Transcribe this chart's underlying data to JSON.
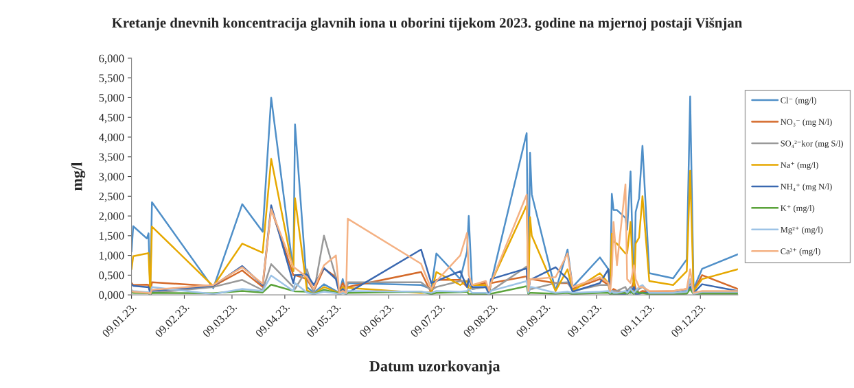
{
  "chart_data": {
    "type": "line",
    "title": "Kretanje dnevnih koncentracija glavnih iona u oborini tijekom 2023. godine na mjernoj postaji Višnjan",
    "xlabel": "Datum uzorkovanja",
    "ylabel": "mg/l",
    "x": [
      "2023-01-09",
      "2023-01-10",
      "2023-01-18",
      "2023-01-19",
      "2023-01-20",
      "2023-01-21",
      "2023-02-26",
      "2023-03-15",
      "2023-03-27",
      "2023-04-01",
      "2023-04-14",
      "2023-04-15",
      "2023-04-22",
      "2023-04-26",
      "2023-05-02",
      "2023-05-09",
      "2023-05-11",
      "2023-05-13",
      "2023-05-15",
      "2023-05-16",
      "2023-06-28",
      "2023-07-04",
      "2023-07-07",
      "2023-07-21",
      "2023-07-25",
      "2023-07-26",
      "2023-07-28",
      "2023-08-05",
      "2023-08-07",
      "2023-08-08",
      "2023-08-29",
      "2023-08-30",
      "2023-08-31",
      "2023-09-01",
      "2023-09-15",
      "2023-09-22",
      "2023-09-25",
      "2023-10-11",
      "2023-10-16",
      "2023-10-17",
      "2023-10-18",
      "2023-10-19",
      "2023-10-21",
      "2023-10-26",
      "2023-10-27",
      "2023-10-29",
      "2023-10-31",
      "2023-11-01",
      "2023-11-03",
      "2023-11-05",
      "2023-11-09",
      "2023-11-23",
      "2023-12-01",
      "2023-12-03",
      "2023-12-05",
      "2023-12-10",
      "2023-12-31"
    ],
    "series": [
      {
        "name": "Cl⁻ (mg/l)",
        "color": "#4f8fc8",
        "values": [
          1.1,
          1.74,
          1.43,
          1.56,
          0.1,
          2.35,
          0.17,
          2.3,
          1.6,
          5.0,
          0.6,
          4.32,
          0.2,
          0.05,
          0.27,
          0.1,
          0.05,
          0.4,
          0.02,
          0.3,
          0.25,
          0.15,
          1.05,
          0.4,
          1.1,
          2.0,
          0.15,
          0.2,
          0.0,
          0.3,
          4.1,
          0.05,
          3.6,
          2.55,
          0.1,
          1.15,
          0.2,
          0.95,
          0.65,
          0.1,
          2.56,
          2.15,
          2.15,
          1.95,
          1.65,
          3.13,
          0.05,
          2.1,
          2.45,
          3.78,
          0.55,
          0.42,
          0.9,
          5.03,
          0.15,
          0.66,
          1.03
        ]
      },
      {
        "name": "NO₃⁻ (mg N/l)",
        "color": "#d46a2a",
        "values": [
          0.3,
          0.25,
          0.26,
          0.25,
          0.05,
          0.32,
          0.22,
          0.62,
          0.2,
          2.18,
          0.5,
          0.5,
          0.4,
          0.1,
          0.67,
          0.45,
          0.1,
          0.3,
          0.15,
          0.2,
          0.58,
          0.05,
          0.38,
          0.38,
          0.2,
          0.4,
          0.25,
          0.3,
          0.1,
          0.3,
          0.47,
          0.1,
          0.4,
          0.4,
          0.3,
          0.3,
          0.15,
          0.4,
          0.25,
          0.1,
          0.1,
          0.15,
          0.1,
          0.05,
          0.1,
          0.1,
          0.35,
          0.15,
          0.05,
          0.1,
          0.08,
          0.1,
          0.15,
          0.3,
          0.1,
          0.5,
          0.15
        ]
      },
      {
        "name": "SO₄²⁻kor (mg S/l)",
        "color": "#999999",
        "values": [
          0.1,
          0.08,
          0.06,
          0.05,
          0.0,
          0.05,
          0.2,
          0.38,
          0.12,
          0.78,
          0.2,
          0.15,
          0.65,
          0.05,
          1.5,
          0.45,
          0.05,
          0.2,
          0.1,
          0.32,
          0.32,
          0.12,
          0.2,
          0.35,
          0.35,
          0.25,
          0.15,
          0.2,
          0.05,
          0.1,
          0.72,
          0.05,
          0.15,
          0.15,
          0.3,
          0.32,
          0.1,
          0.25,
          0.25,
          0.05,
          0.1,
          0.1,
          0.1,
          0.2,
          0.1,
          0.2,
          0.1,
          0.05,
          0.15,
          0.2,
          0.05,
          0.05,
          0.05,
          0.2,
          0.05,
          0.05,
          0.05
        ]
      },
      {
        "name": "Na⁺ (mg/l)",
        "color": "#e6a800",
        "values": [
          0.65,
          0.98,
          1.05,
          1.06,
          0.05,
          1.73,
          0.22,
          1.3,
          1.07,
          3.45,
          0.6,
          2.45,
          0.12,
          0.02,
          0.2,
          0.08,
          0.05,
          0.2,
          0.15,
          0.18,
          0.05,
          0.07,
          0.58,
          0.25,
          0.35,
          0.1,
          0.25,
          0.25,
          0.05,
          0.3,
          2.27,
          0.05,
          1.97,
          1.5,
          0.1,
          0.65,
          0.1,
          0.55,
          0.3,
          0.1,
          1.55,
          1.35,
          1.3,
          1.05,
          1.05,
          1.85,
          0.05,
          1.3,
          1.45,
          2.5,
          0.35,
          0.25,
          0.6,
          3.15,
          0.1,
          0.4,
          0.65
        ]
      },
      {
        "name": "NH₄⁺ (mg N/l)",
        "color": "#3a68b0",
        "values": [
          0.27,
          0.23,
          0.2,
          0.2,
          0.05,
          0.1,
          0.23,
          0.73,
          0.25,
          2.27,
          0.3,
          0.5,
          0.52,
          0.25,
          0.68,
          0.4,
          0.05,
          0.15,
          0.02,
          0.05,
          1.15,
          0.3,
          0.35,
          0.6,
          0.2,
          0.4,
          0.2,
          0.2,
          0.05,
          0.4,
          0.67,
          0.05,
          0.4,
          0.4,
          0.7,
          0.4,
          0.08,
          0.3,
          0.65,
          0.05,
          0.05,
          0.02,
          0.02,
          0.02,
          0.1,
          0.05,
          0.2,
          0.02,
          0.03,
          0.05,
          0.05,
          0.05,
          0.1,
          0.2,
          0.05,
          0.27,
          0.1
        ]
      },
      {
        "name": "K⁺ (mg/l)",
        "color": "#5ba33b",
        "values": [
          0.07,
          0.05,
          0.04,
          0.04,
          0.01,
          0.05,
          0.04,
          0.1,
          0.06,
          0.26,
          0.1,
          0.09,
          0.08,
          0.02,
          0.13,
          0.06,
          0.02,
          0.05,
          0.03,
          0.05,
          0.08,
          0.02,
          0.05,
          0.07,
          0.08,
          0.02,
          0.02,
          0.03,
          0.01,
          0.03,
          0.22,
          0.02,
          0.05,
          0.05,
          0.03,
          0.05,
          0.02,
          0.05,
          0.05,
          0.02,
          0.03,
          0.03,
          0.03,
          0.05,
          0.02,
          0.08,
          0.02,
          0.1,
          0.05,
          0.05,
          0.01,
          0.01,
          0.03,
          0.15,
          0.02,
          0.03,
          0.03
        ]
      },
      {
        "name": "Mg²⁺ (mg/l)",
        "color": "#9dc3e6",
        "values": [
          0.12,
          0.1,
          0.07,
          0.07,
          0.02,
          0.2,
          0.02,
          0.15,
          0.1,
          0.49,
          0.1,
          0.3,
          0.06,
          0.02,
          0.08,
          0.04,
          0.02,
          0.05,
          0.03,
          0.1,
          0.08,
          0.05,
          0.1,
          0.08,
          0.1,
          0.15,
          0.05,
          0.05,
          0.02,
          0.1,
          0.35,
          0.05,
          0.2,
          0.2,
          0.05,
          0.08,
          0.05,
          0.08,
          0.1,
          0.05,
          0.1,
          0.05,
          0.05,
          0.1,
          0.05,
          0.15,
          0.05,
          0.1,
          0.2,
          0.25,
          0.05,
          0.05,
          0.08,
          0.4,
          0.02,
          0.08,
          0.08
        ]
      },
      {
        "name": "Ca²⁺ (mg/l)",
        "color": "#f4b183",
        "values": [
          0.1,
          0.08,
          0.05,
          0.05,
          0.03,
          0.13,
          0.25,
          0.7,
          0.28,
          2.17,
          0.7,
          0.68,
          0.45,
          0.15,
          0.75,
          1.0,
          0.05,
          0.1,
          0.05,
          1.93,
          0.79,
          0.15,
          0.35,
          1.0,
          1.57,
          0.5,
          0.25,
          0.35,
          0.1,
          0.3,
          2.54,
          0.1,
          0.4,
          0.4,
          0.45,
          1.05,
          0.2,
          0.45,
          0.3,
          0.1,
          0.5,
          1.85,
          0.75,
          2.8,
          0.4,
          0.3,
          0.75,
          0.4,
          0.2,
          0.2,
          0.1,
          0.1,
          0.15,
          0.65,
          0.05,
          0.1,
          0.1
        ]
      }
    ],
    "xlim": [
      "2023-01-09",
      "2023-12-31"
    ],
    "xticks": [
      {
        "value": "2023-01-09",
        "label": "09.01.23."
      },
      {
        "value": "2023-02-09",
        "label": "09.02.23."
      },
      {
        "value": "2023-03-09",
        "label": "09.03.23."
      },
      {
        "value": "2023-04-09",
        "label": "09.04.23."
      },
      {
        "value": "2023-05-09",
        "label": "09.05.23."
      },
      {
        "value": "2023-06-09",
        "label": "09.06.23."
      },
      {
        "value": "2023-07-09",
        "label": "09.07.23."
      },
      {
        "value": "2023-08-09",
        "label": "09.08.23."
      },
      {
        "value": "2023-09-09",
        "label": "09.09.23."
      },
      {
        "value": "2023-10-09",
        "label": "09.10.23."
      },
      {
        "value": "2023-11-09",
        "label": "09.11.23."
      },
      {
        "value": "2023-12-09",
        "label": "09.12.23."
      }
    ],
    "ylim": [
      0,
      6
    ],
    "yticks": [
      {
        "value": 0,
        "label": "0,000"
      },
      {
        "value": 0.5,
        "label": "0,500"
      },
      {
        "value": 1,
        "label": "1,000"
      },
      {
        "value": 1.5,
        "label": "1,500"
      },
      {
        "value": 2,
        "label": "2,000"
      },
      {
        "value": 2.5,
        "label": "2,500"
      },
      {
        "value": 3,
        "label": "3,000"
      },
      {
        "value": 3.5,
        "label": "3,500"
      },
      {
        "value": 4,
        "label": "4,000"
      },
      {
        "value": 4.5,
        "label": "4,500"
      },
      {
        "value": 5,
        "label": "5,000"
      },
      {
        "value": 5.5,
        "label": "5,500"
      },
      {
        "value": 6,
        "label": "6,000"
      }
    ],
    "grid": false,
    "legend": "right",
    "marker": "none",
    "line_style": "solid"
  }
}
